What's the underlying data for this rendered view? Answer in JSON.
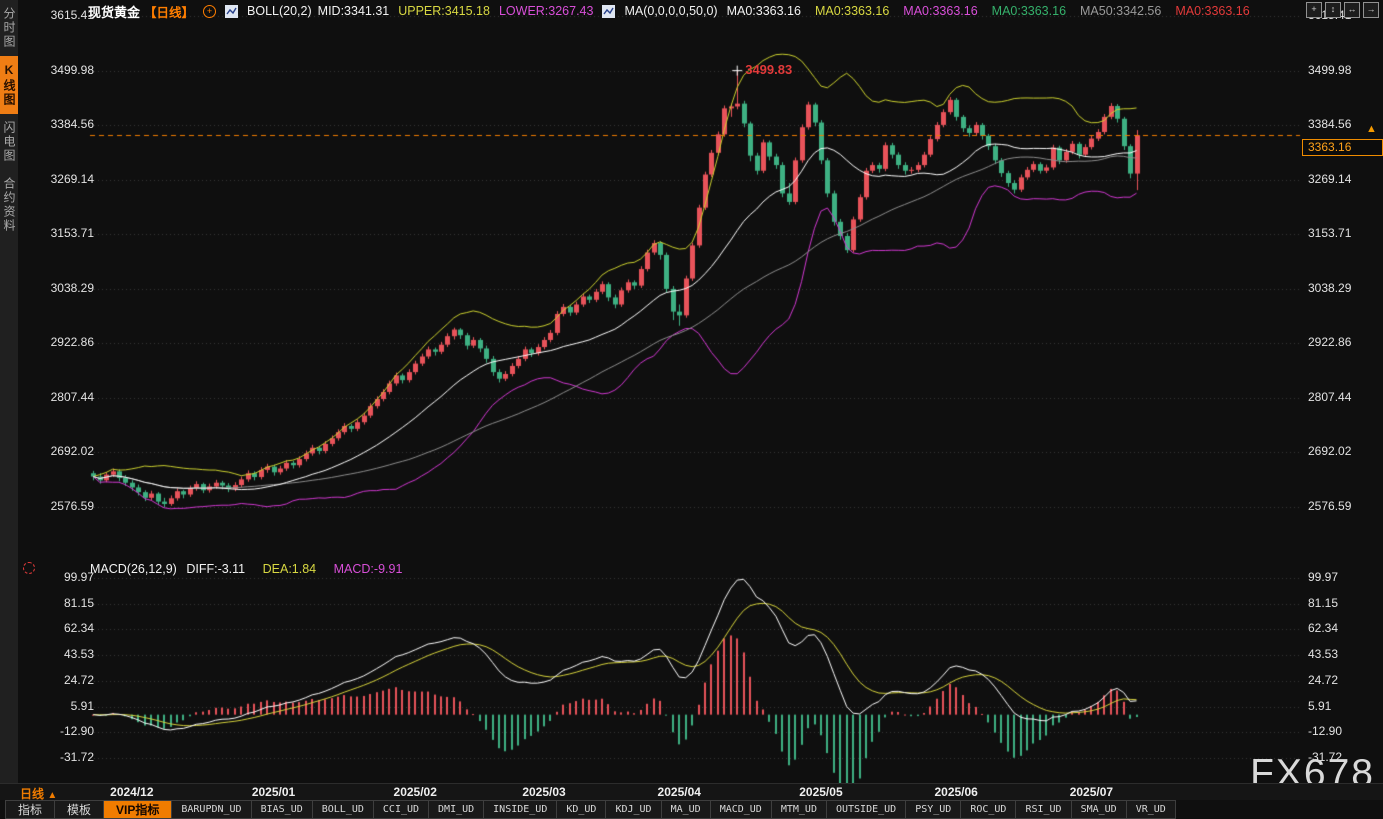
{
  "window": {
    "watermark": "FX678"
  },
  "header": {
    "title": "现货黄金",
    "period_tag": "【日线】",
    "boll_label": "BOLL(20,2)",
    "boll_mid": "MID:3341.31",
    "boll_upper": "UPPER:3415.18",
    "boll_lower": "LOWER:3267.43",
    "ma_label": "MA(0,0,0,0,50,0)",
    "ma_values": [
      {
        "text": "MA0:3363.16",
        "color": "#f2f2f2"
      },
      {
        "text": "MA0:3363.16",
        "color": "#d8d842"
      },
      {
        "text": "MA0:3363.16",
        "color": "#d84fd8"
      },
      {
        "text": "MA0:3363.16",
        "color": "#35b06b"
      },
      {
        "text": "MA50:3342.56",
        "color": "#9a9a9a"
      },
      {
        "text": "MA0:3363.16",
        "color": "#e23a3a"
      }
    ]
  },
  "toolbar": {
    "icons": [
      {
        "name": "move-tool-icon",
        "glyph": "+"
      },
      {
        "name": "y-zoom-icon",
        "glyph": "↕"
      },
      {
        "name": "x-zoom-icon",
        "glyph": "↔"
      },
      {
        "name": "pan-right-icon",
        "glyph": "→"
      }
    ]
  },
  "sidebar": {
    "items": [
      {
        "label": "分时图",
        "active": false
      },
      {
        "label": "K线图",
        "active": true
      },
      {
        "label": "闪电图",
        "active": false
      },
      {
        "label": "合约资料",
        "active": false
      }
    ]
  },
  "period_selector": {
    "label": "日线",
    "arrow": "▲"
  },
  "price_tag": {
    "value": "3363.16",
    "arrow": "▲"
  },
  "annotations": {
    "peak_label": "3499.83"
  },
  "macd_header": {
    "label": "MACD(26,12,9)",
    "diff": "DIFF:-3.11",
    "dea": "DEA:1.84",
    "macd": "MACD:-9.91"
  },
  "bottom_tabs": [
    {
      "label": "指标"
    },
    {
      "label": "模板"
    },
    {
      "label": "VIP指标",
      "active": true
    },
    {
      "label": "BARUPDN_UD"
    },
    {
      "label": "BIAS_UD"
    },
    {
      "label": "BOLL_UD"
    },
    {
      "label": "CCI_UD"
    },
    {
      "label": "DMI_UD"
    },
    {
      "label": "INSIDE_UD"
    },
    {
      "label": "KD_UD"
    },
    {
      "label": "KDJ_UD"
    },
    {
      "label": "MA_UD"
    },
    {
      "label": "MACD_UD"
    },
    {
      "label": "MTM_UD"
    },
    {
      "label": "OUTSIDE_UD"
    },
    {
      "label": "PSY_UD"
    },
    {
      "label": "ROC_UD"
    },
    {
      "label": "RSI_UD"
    },
    {
      "label": "SMA_UD"
    },
    {
      "label": "VR_UD"
    }
  ],
  "colors": {
    "up": "#e8535a",
    "down": "#3eb183",
    "boll_upper": "#cdd32f",
    "boll_mid": "#ffffff",
    "boll_lower": "#d338d3",
    "ma50": "#8f8f8f",
    "dea": "#d8d53c",
    "diff": "#ffffff",
    "accent": "#f07c00",
    "annotation": "#e23a3a",
    "grid": "#3a3a3a"
  },
  "chart_data": {
    "type": "candlestick",
    "title": "现货黄金 日线",
    "ylim": [
      2576.59,
      3615.41
    ],
    "y_ticks": [
      3615.41,
      3499.98,
      3384.56,
      3269.14,
      3153.71,
      3038.29,
      2922.86,
      2807.44,
      2692.02,
      2576.59
    ],
    "x_labels": [
      "2024/12",
      "2025/01",
      "2025/02",
      "2025/03",
      "2025/04",
      "2025/05",
      "2025/06",
      "2025/07"
    ],
    "month_start_index": [
      0,
      22,
      44,
      64,
      85,
      107,
      128,
      149
    ],
    "last_price": 3363.16,
    "peak_high": 3499.83,
    "candles": [
      [
        2648,
        2653,
        2633,
        2641
      ],
      [
        2641,
        2648,
        2626,
        2633
      ],
      [
        2633,
        2650,
        2629,
        2645
      ],
      [
        2645,
        2658,
        2640,
        2652
      ],
      [
        2652,
        2656,
        2631,
        2638
      ],
      [
        2638,
        2644,
        2621,
        2628
      ],
      [
        2628,
        2633,
        2611,
        2618
      ],
      [
        2618,
        2624,
        2601,
        2608
      ],
      [
        2608,
        2612,
        2589,
        2596
      ],
      [
        2596,
        2611,
        2591,
        2605
      ],
      [
        2605,
        2608,
        2581,
        2588
      ],
      [
        2588,
        2596,
        2576,
        2583
      ],
      [
        2583,
        2601,
        2579,
        2595
      ],
      [
        2595,
        2616,
        2590,
        2610
      ],
      [
        2610,
        2613,
        2595,
        2603
      ],
      [
        2603,
        2622,
        2598,
        2617
      ],
      [
        2617,
        2631,
        2611,
        2625
      ],
      [
        2625,
        2628,
        2606,
        2612
      ],
      [
        2612,
        2626,
        2607,
        2620
      ],
      [
        2620,
        2634,
        2615,
        2628
      ],
      [
        2628,
        2632,
        2614,
        2622
      ],
      [
        2622,
        2627,
        2608,
        2615
      ],
      [
        2615,
        2629,
        2610,
        2623
      ],
      [
        2623,
        2641,
        2618,
        2635
      ],
      [
        2635,
        2654,
        2630,
        2648
      ],
      [
        2648,
        2652,
        2633,
        2640
      ],
      [
        2640,
        2661,
        2635,
        2655
      ],
      [
        2655,
        2668,
        2649,
        2662
      ],
      [
        2662,
        2666,
        2643,
        2650
      ],
      [
        2650,
        2664,
        2645,
        2658
      ],
      [
        2658,
        2676,
        2653,
        2670
      ],
      [
        2670,
        2674,
        2658,
        2665
      ],
      [
        2665,
        2684,
        2660,
        2678
      ],
      [
        2678,
        2696,
        2673,
        2690
      ],
      [
        2690,
        2708,
        2685,
        2702
      ],
      [
        2702,
        2706,
        2688,
        2695
      ],
      [
        2695,
        2716,
        2690,
        2710
      ],
      [
        2710,
        2728,
        2705,
        2722
      ],
      [
        2722,
        2741,
        2717,
        2735
      ],
      [
        2735,
        2754,
        2730,
        2748
      ],
      [
        2748,
        2752,
        2735,
        2742
      ],
      [
        2742,
        2762,
        2737,
        2756
      ],
      [
        2756,
        2776,
        2751,
        2770
      ],
      [
        2770,
        2796,
        2765,
        2790
      ],
      [
        2790,
        2811,
        2785,
        2805
      ],
      [
        2805,
        2826,
        2800,
        2820
      ],
      [
        2820,
        2844,
        2815,
        2838
      ],
      [
        2838,
        2861,
        2833,
        2855
      ],
      [
        2855,
        2859,
        2838,
        2845
      ],
      [
        2845,
        2868,
        2840,
        2862
      ],
      [
        2862,
        2886,
        2857,
        2880
      ],
      [
        2880,
        2901,
        2875,
        2895
      ],
      [
        2895,
        2916,
        2890,
        2910
      ],
      [
        2910,
        2914,
        2897,
        2905
      ],
      [
        2905,
        2926,
        2900,
        2920
      ],
      [
        2920,
        2944,
        2915,
        2938
      ],
      [
        2938,
        2956,
        2931,
        2952
      ],
      [
        2952,
        2955,
        2932,
        2940
      ],
      [
        2940,
        2945,
        2910,
        2918
      ],
      [
        2918,
        2936,
        2913,
        2930
      ],
      [
        2930,
        2934,
        2904,
        2912
      ],
      [
        2912,
        2918,
        2882,
        2890
      ],
      [
        2890,
        2896,
        2854,
        2862
      ],
      [
        2862,
        2868,
        2840,
        2848
      ],
      [
        2848,
        2864,
        2843,
        2858
      ],
      [
        2858,
        2881,
        2853,
        2875
      ],
      [
        2875,
        2896,
        2870,
        2890
      ],
      [
        2890,
        2916,
        2885,
        2910
      ],
      [
        2910,
        2914,
        2894,
        2902
      ],
      [
        2902,
        2921,
        2897,
        2915
      ],
      [
        2915,
        2936,
        2910,
        2930
      ],
      [
        2930,
        2951,
        2925,
        2945
      ],
      [
        2945,
        2991,
        2940,
        2985
      ],
      [
        2985,
        3006,
        2980,
        3000
      ],
      [
        3000,
        3004,
        2981,
        2988
      ],
      [
        2988,
        3011,
        2983,
        3005
      ],
      [
        3005,
        3028,
        3000,
        3022
      ],
      [
        3022,
        3026,
        3008,
        3015
      ],
      [
        3015,
        3038,
        3010,
        3032
      ],
      [
        3032,
        3054,
        3027,
        3048
      ],
      [
        3048,
        3052,
        3012,
        3020
      ],
      [
        3020,
        3026,
        2997,
        3005
      ],
      [
        3005,
        3041,
        3000,
        3035
      ],
      [
        3035,
        3058,
        3030,
        3052
      ],
      [
        3052,
        3056,
        3038,
        3045
      ],
      [
        3045,
        3086,
        3040,
        3080
      ],
      [
        3080,
        3121,
        3075,
        3115
      ],
      [
        3115,
        3141,
        3110,
        3135
      ],
      [
        3135,
        3139,
        3100,
        3110
      ],
      [
        3110,
        3115,
        3030,
        3038
      ],
      [
        3038,
        3044,
        2972,
        2990
      ],
      [
        2990,
        3005,
        2960,
        2982
      ],
      [
        2982,
        3066,
        2977,
        3060
      ],
      [
        3060,
        3136,
        3055,
        3130
      ],
      [
        3130,
        3216,
        3125,
        3210
      ],
      [
        3210,
        3286,
        3205,
        3280
      ],
      [
        3280,
        3332,
        3275,
        3326
      ],
      [
        3326,
        3371,
        3321,
        3365
      ],
      [
        3365,
        3426,
        3360,
        3420
      ],
      [
        3420,
        3430,
        3402,
        3424
      ],
      [
        3424,
        3499.83,
        3418,
        3430
      ],
      [
        3430,
        3436,
        3380,
        3388
      ],
      [
        3388,
        3392,
        3308,
        3320
      ],
      [
        3320,
        3326,
        3280,
        3288
      ],
      [
        3288,
        3354,
        3283,
        3348
      ],
      [
        3348,
        3352,
        3310,
        3318
      ],
      [
        3318,
        3324,
        3292,
        3300
      ],
      [
        3300,
        3306,
        3232,
        3240
      ],
      [
        3240,
        3262,
        3216,
        3222
      ],
      [
        3222,
        3316,
        3217,
        3310
      ],
      [
        3310,
        3386,
        3305,
        3380
      ],
      [
        3380,
        3434,
        3375,
        3428
      ],
      [
        3428,
        3432,
        3382,
        3390
      ],
      [
        3390,
        3395,
        3302,
        3310
      ],
      [
        3310,
        3315,
        3232,
        3240
      ],
      [
        3240,
        3246,
        3172,
        3180
      ],
      [
        3180,
        3186,
        3142,
        3150
      ],
      [
        3150,
        3156,
        3114,
        3120
      ],
      [
        3120,
        3191,
        3115,
        3185
      ],
      [
        3185,
        3238,
        3180,
        3232
      ],
      [
        3232,
        3294,
        3227,
        3288
      ],
      [
        3288,
        3306,
        3283,
        3300
      ],
      [
        3300,
        3305,
        3284,
        3292
      ],
      [
        3292,
        3348,
        3287,
        3342
      ],
      [
        3342,
        3347,
        3314,
        3322
      ],
      [
        3322,
        3327,
        3292,
        3300
      ],
      [
        3300,
        3306,
        3280,
        3288
      ],
      [
        3288,
        3296,
        3282,
        3290
      ],
      [
        3290,
        3306,
        3285,
        3300
      ],
      [
        3300,
        3328,
        3295,
        3322
      ],
      [
        3322,
        3361,
        3317,
        3355
      ],
      [
        3355,
        3391,
        3350,
        3385
      ],
      [
        3385,
        3418,
        3380,
        3412
      ],
      [
        3412,
        3444,
        3407,
        3438
      ],
      [
        3438,
        3442,
        3394,
        3402
      ],
      [
        3402,
        3406,
        3370,
        3378
      ],
      [
        3378,
        3384,
        3360,
        3368
      ],
      [
        3368,
        3391,
        3363,
        3385
      ],
      [
        3385,
        3389,
        3354,
        3362
      ],
      [
        3362,
        3366,
        3332,
        3340
      ],
      [
        3340,
        3345,
        3302,
        3310
      ],
      [
        3310,
        3315,
        3275,
        3283
      ],
      [
        3283,
        3288,
        3254,
        3262
      ],
      [
        3262,
        3268,
        3240,
        3248
      ],
      [
        3248,
        3280,
        3243,
        3274
      ],
      [
        3274,
        3296,
        3269,
        3290
      ],
      [
        3290,
        3308,
        3285,
        3302
      ],
      [
        3302,
        3306,
        3282,
        3288
      ],
      [
        3288,
        3301,
        3283,
        3295
      ],
      [
        3295,
        3343,
        3290,
        3337
      ],
      [
        3337,
        3341,
        3302,
        3310
      ],
      [
        3310,
        3334,
        3305,
        3328
      ],
      [
        3328,
        3351,
        3323,
        3345
      ],
      [
        3345,
        3349,
        3314,
        3322
      ],
      [
        3322,
        3344,
        3317,
        3338
      ],
      [
        3338,
        3362,
        3333,
        3356
      ],
      [
        3356,
        3376,
        3351,
        3370
      ],
      [
        3370,
        3408,
        3365,
        3402
      ],
      [
        3402,
        3431,
        3397,
        3425
      ],
      [
        3425,
        3429,
        3390,
        3398
      ],
      [
        3398,
        3402,
        3332,
        3340
      ],
      [
        3340,
        3344,
        3272,
        3282
      ],
      [
        3282,
        3374,
        3247,
        3363.16
      ]
    ],
    "indicators": {
      "boll": {
        "params": [
          20,
          2
        ],
        "mid": 3341.31,
        "upper": 3415.18,
        "lower": 3267.43
      },
      "ma50": 3342.56,
      "macd": {
        "params": [
          26,
          12,
          9
        ],
        "diff": -3.11,
        "dea": 1.84,
        "macd": -9.91,
        "y_ticks": [
          99.97,
          81.15,
          62.34,
          43.53,
          24.72,
          5.91,
          -12.9,
          -31.72
        ]
      }
    }
  }
}
